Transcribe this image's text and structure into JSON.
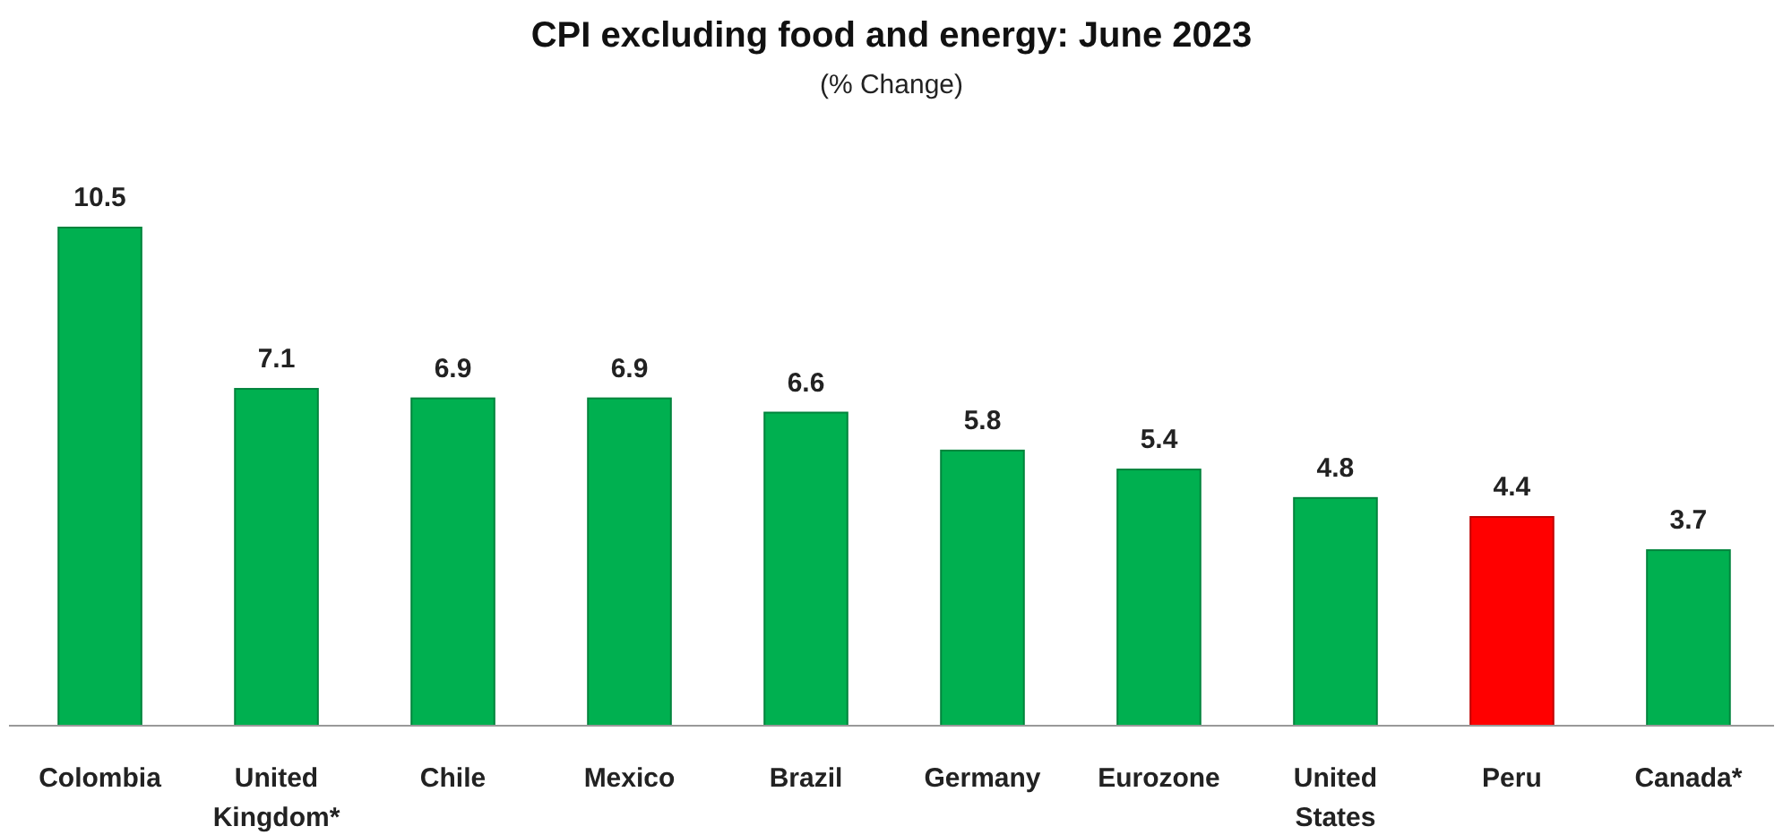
{
  "chart_data": {
    "type": "bar",
    "title": "CPI excluding food and energy: June 2023",
    "subtitle": "(% Change)",
    "categories": [
      "Colombia",
      "United Kingdom*",
      "Chile",
      "Mexico",
      "Brazil",
      "Germany",
      "Eurozone",
      "United States",
      "Peru",
      "Canada*"
    ],
    "values": [
      10.5,
      7.1,
      6.9,
      6.9,
      6.6,
      5.8,
      5.4,
      4.8,
      4.4,
      3.7
    ],
    "colors": [
      "#00b050",
      "#00b050",
      "#00b050",
      "#00b050",
      "#00b050",
      "#00b050",
      "#00b050",
      "#00b050",
      "#ff0000",
      "#00b050"
    ],
    "data_labels": true
  }
}
